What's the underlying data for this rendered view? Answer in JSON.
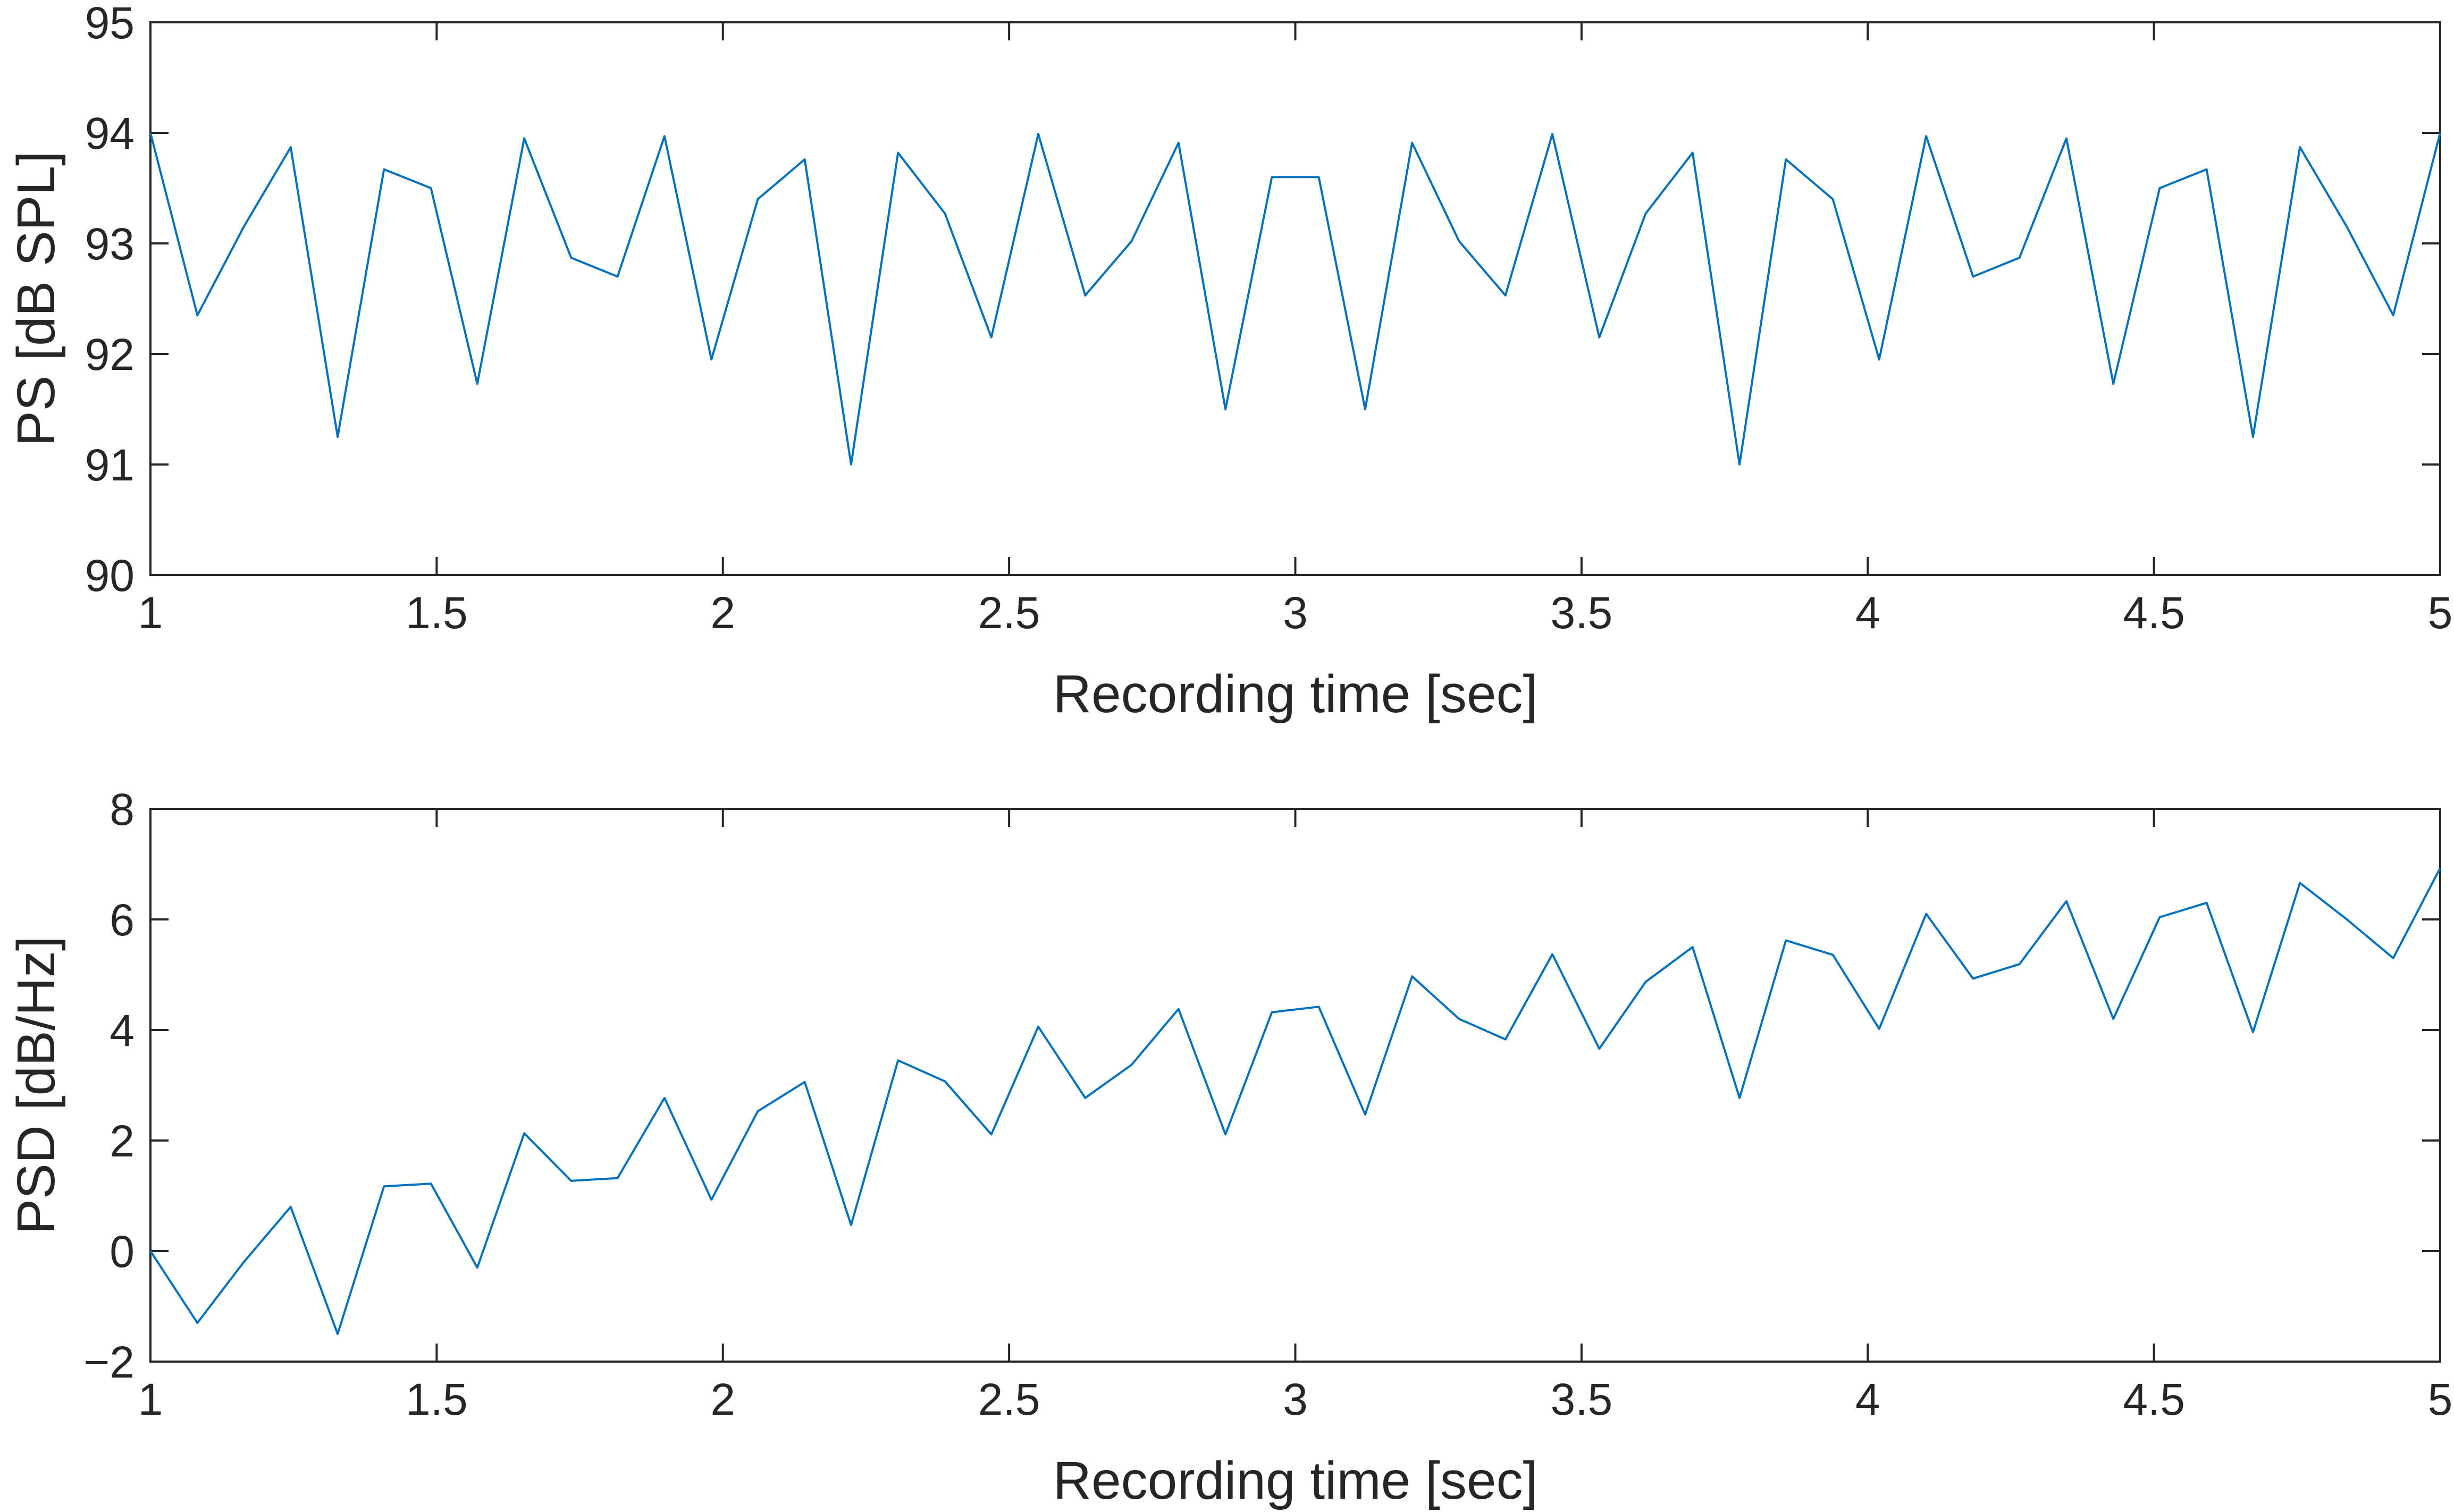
{
  "chart_data": [
    {
      "type": "line",
      "title": "",
      "xlabel": "Recording time [sec]",
      "ylabel": "PS [dB SPL]",
      "xlim": [
        1,
        5
      ],
      "ylim": [
        90,
        95
      ],
      "xticks": [
        1,
        1.5,
        2,
        2.5,
        3,
        3.5,
        4,
        4.5,
        5
      ],
      "xtick_labels": [
        "1",
        "1.5",
        "2",
        "2.5",
        "3",
        "3.5",
        "4",
        "4.5",
        "5"
      ],
      "yticks": [
        90,
        91,
        92,
        93,
        94,
        95
      ],
      "ytick_labels": [
        "90",
        "91",
        "92",
        "93",
        "94",
        "95"
      ],
      "grid": false,
      "series": [
        {
          "color": "#0072BD",
          "x": [
            1.0,
            1.082,
            1.163,
            1.245,
            1.327,
            1.408,
            1.49,
            1.571,
            1.653,
            1.735,
            1.816,
            1.898,
            1.98,
            2.061,
            2.143,
            2.224,
            2.306,
            2.388,
            2.469,
            2.551,
            2.633,
            2.714,
            2.796,
            2.878,
            2.959,
            3.041,
            3.122,
            3.204,
            3.286,
            3.367,
            3.449,
            3.531,
            3.612,
            3.694,
            3.776,
            3.857,
            3.939,
            4.02,
            4.102,
            4.184,
            4.265,
            4.347,
            4.429,
            4.51,
            4.592,
            4.673,
            4.755,
            4.837,
            4.918,
            5.0
          ],
          "values": [
            94.0,
            92.35,
            93.15,
            93.87,
            91.25,
            93.67,
            93.5,
            91.73,
            93.95,
            92.87,
            92.7,
            93.97,
            91.95,
            93.4,
            93.76,
            91.0,
            93.82,
            93.27,
            92.15,
            93.99,
            92.53,
            93.02,
            93.91,
            91.5,
            93.6,
            93.6,
            91.5,
            93.91,
            93.02,
            92.53,
            93.99,
            92.15,
            93.27,
            93.82,
            91.0,
            93.76,
            93.4,
            91.95,
            93.97,
            92.7,
            92.87,
            93.95,
            91.73,
            93.5,
            93.67,
            91.25,
            93.87,
            93.15,
            92.35,
            94.0
          ]
        }
      ]
    },
    {
      "type": "line",
      "title": "",
      "xlabel": "Recording time [sec]",
      "ylabel": "PSD [dB/Hz]",
      "xlim": [
        1,
        5
      ],
      "ylim": [
        -2,
        8
      ],
      "xticks": [
        1,
        1.5,
        2,
        2.5,
        3,
        3.5,
        4,
        4.5,
        5
      ],
      "xtick_labels": [
        "1",
        "1.5",
        "2",
        "2.5",
        "3",
        "3.5",
        "4",
        "4.5",
        "5"
      ],
      "yticks": [
        -2,
        0,
        2,
        4,
        6,
        8
      ],
      "ytick_labels": [
        "−2",
        "0",
        "2",
        "4",
        "6",
        "8"
      ],
      "grid": false,
      "series": [
        {
          "color": "#0072BD",
          "x": [
            1.0,
            1.082,
            1.163,
            1.245,
            1.327,
            1.408,
            1.49,
            1.571,
            1.653,
            1.735,
            1.816,
            1.898,
            1.98,
            2.061,
            2.143,
            2.224,
            2.306,
            2.388,
            2.469,
            2.551,
            2.633,
            2.714,
            2.796,
            2.878,
            2.959,
            3.041,
            3.122,
            3.204,
            3.286,
            3.367,
            3.449,
            3.531,
            3.612,
            3.694,
            3.776,
            3.857,
            3.939,
            4.02,
            4.102,
            4.184,
            4.265,
            4.347,
            4.429,
            4.51,
            4.592,
            4.673,
            4.755,
            4.837,
            4.918,
            5.0
          ],
          "values": [
            0.0,
            -1.3,
            -0.2,
            0.8,
            -1.5,
            1.17,
            1.22,
            -0.3,
            2.13,
            1.27,
            1.32,
            2.77,
            0.93,
            2.53,
            3.06,
            0.47,
            3.45,
            3.07,
            2.11,
            4.06,
            2.77,
            3.37,
            4.38,
            2.11,
            4.32,
            4.42,
            2.47,
            4.97,
            4.2,
            3.83,
            5.37,
            3.66,
            4.87,
            5.5,
            2.77,
            5.62,
            5.36,
            4.02,
            6.1,
            4.93,
            5.19,
            6.33,
            4.2,
            6.04,
            6.3,
            3.96,
            6.66,
            6.0,
            5.3,
            6.93
          ]
        }
      ]
    }
  ]
}
